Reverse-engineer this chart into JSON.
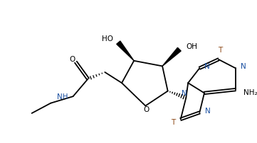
{
  "bg_color": "#ffffff",
  "line_color": "#000000",
  "T_color": "#8B4513",
  "N_color": "#1a4fa0",
  "lw": 1.3,
  "fig_width": 3.61,
  "fig_height": 2.02,
  "dpi": 100,
  "xlim": [
    0,
    361
  ],
  "ylim": [
    0,
    202
  ]
}
